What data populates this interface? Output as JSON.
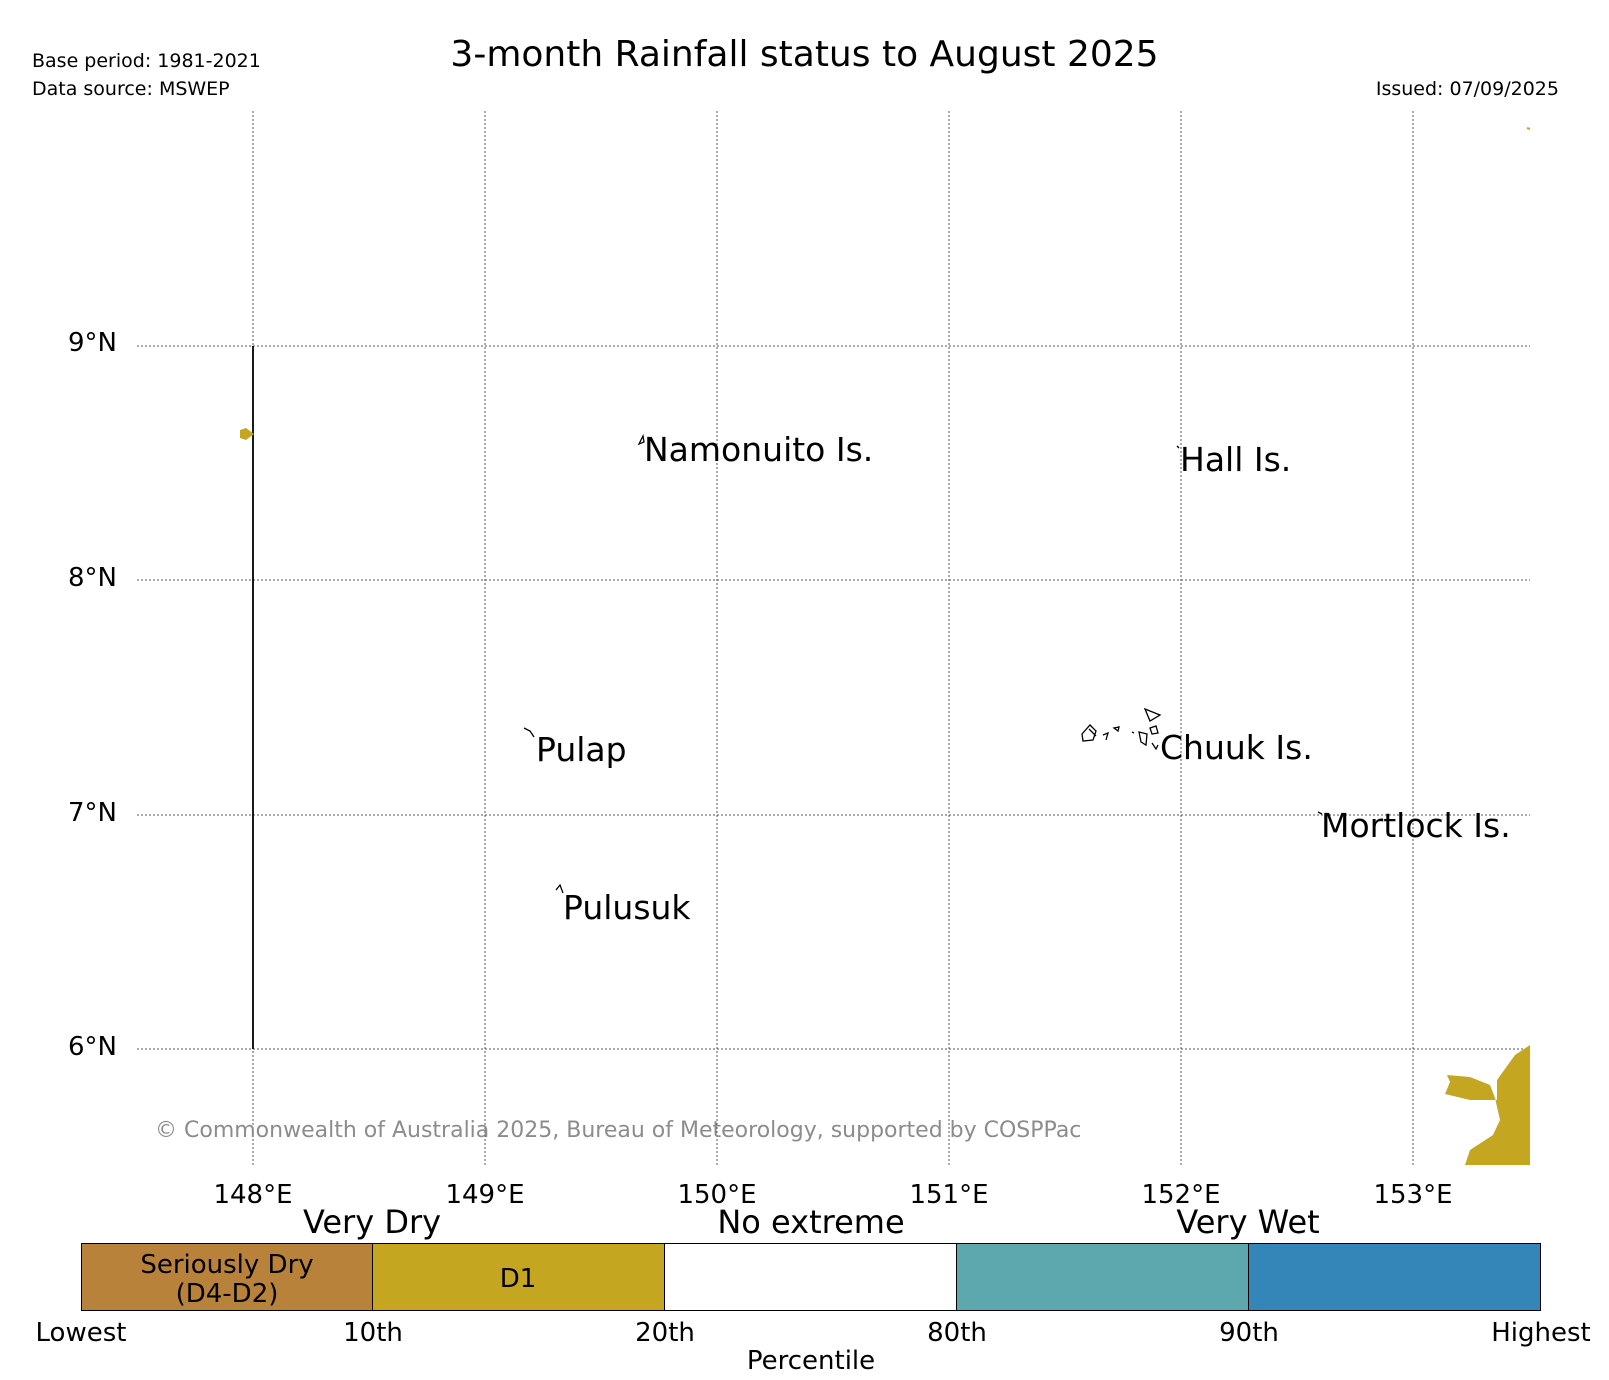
{
  "header": {
    "title": "3-month Rainfall status to August 2025",
    "base_period": "Base period: 1981-2021",
    "data_source": "Data source: MSWEP",
    "issued": "Issued: 07/09/2025"
  },
  "map": {
    "lat_ticks": [
      "9°N",
      "8°N",
      "7°N",
      "6°N"
    ],
    "lon_ticks": [
      "148°E",
      "149°E",
      "150°E",
      "151°E",
      "152°E",
      "153°E"
    ],
    "places": [
      "Namonuito Is.",
      "Hall Is.",
      "Pulap",
      "Chuuk Is.",
      "Mortlock Is.",
      "Pulusuk"
    ],
    "copyright": "© Commonwealth of Australia 2025, Bureau of Meteorology, supported by COSPPac"
  },
  "legend": {
    "categories": [
      "Very Dry",
      "No extreme",
      "Very Wet"
    ],
    "boxes": [
      {
        "label_line1": "Seriously Dry",
        "label_line2": "(D4-D2)",
        "color": "#b8823a"
      },
      {
        "label_line1": "D1",
        "label_line2": "",
        "color": "#c4a620"
      },
      {
        "label_line1": "",
        "label_line2": "",
        "color": "#ffffff"
      },
      {
        "label_line1": "",
        "label_line2": "",
        "color": "#5ca8ae"
      },
      {
        "label_line1": "",
        "label_line2": "",
        "color": "#3586b8"
      }
    ],
    "percentiles": [
      "Lowest",
      "10th",
      "20th",
      "80th",
      "90th",
      "Highest"
    ],
    "axis_label": "Percentile"
  }
}
